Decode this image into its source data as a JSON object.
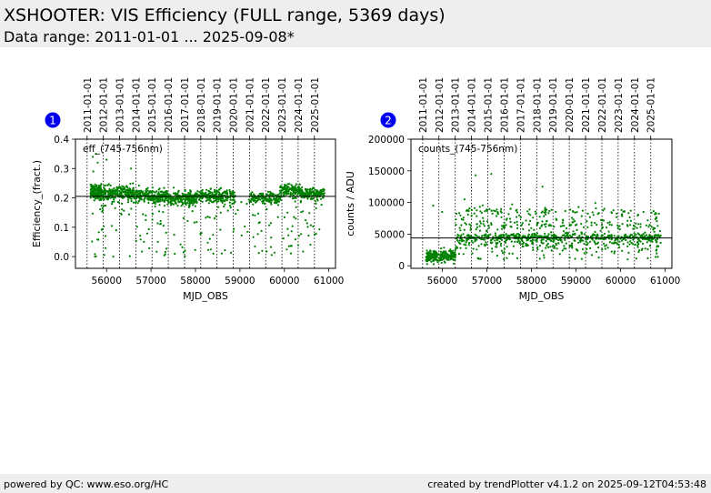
{
  "header": {
    "title": "XSHOOTER: VIS Efficiency (FULL range, 5369 days)",
    "subtitle": "Data range: 2011-01-01 ... 2025-09-08*"
  },
  "footer": {
    "left": "powered by QC: www.eso.org/HC",
    "right": "created by trendPlotter v4.1.2 on 2025-09-12T04:53:48"
  },
  "colors": {
    "points": "#008000",
    "badge": "#0000ee",
    "band": "#eeeeee"
  },
  "chart_data": [
    {
      "type": "scatter",
      "badge": "1",
      "annotation": "eff_(745-756nm)",
      "xlabel": "MJD_OBS",
      "ylabel": "Efficiency_(fract.)",
      "xlim": [
        55300,
        61150
      ],
      "ylim": [
        -0.04,
        0.4
      ],
      "xticks": [
        56000,
        57000,
        58000,
        59000,
        60000,
        61000
      ],
      "yticks": [
        0.0,
        0.1,
        0.2,
        0.3,
        0.4
      ],
      "ytick_labels": [
        "0.0",
        "0.1",
        "0.2",
        "0.3",
        "0.4"
      ],
      "reference_line": 0.205,
      "year_ticks": [
        {
          "mjd": 55562,
          "label": "2011-01-01"
        },
        {
          "mjd": 55927,
          "label": "2012-01-01"
        },
        {
          "mjd": 56293,
          "label": "2013-01-01"
        },
        {
          "mjd": 56658,
          "label": "2014-01-01"
        },
        {
          "mjd": 57023,
          "label": "2015-01-01"
        },
        {
          "mjd": 57388,
          "label": "2016-01-01"
        },
        {
          "mjd": 57754,
          "label": "2017-01-01"
        },
        {
          "mjd": 58119,
          "label": "2018-01-01"
        },
        {
          "mjd": 58484,
          "label": "2019-01-01"
        },
        {
          "mjd": 58849,
          "label": "2020-01-01"
        },
        {
          "mjd": 59215,
          "label": "2021-01-01"
        },
        {
          "mjd": 59580,
          "label": "2022-01-01"
        },
        {
          "mjd": 59945,
          "label": "2023-01-01"
        },
        {
          "mjd": 60310,
          "label": "2024-01-01"
        },
        {
          "mjd": 60676,
          "label": "2025-01-01"
        }
      ],
      "clusters": [
        {
          "x": [
            55640,
            55880
          ],
          "y": 0.22,
          "spread": 0.012,
          "n": 170
        },
        {
          "x": [
            55880,
            56650
          ],
          "y": 0.215,
          "spread": 0.012,
          "n": 260
        },
        {
          "x": [
            56650,
            57400
          ],
          "y": 0.205,
          "spread": 0.012,
          "n": 240
        },
        {
          "x": [
            57400,
            58000
          ],
          "y": 0.197,
          "spread": 0.012,
          "n": 190
        },
        {
          "x": [
            58000,
            58900
          ],
          "y": 0.205,
          "spread": 0.012,
          "n": 220
        },
        {
          "x": [
            59200,
            59900
          ],
          "y": 0.198,
          "spread": 0.01,
          "n": 150
        },
        {
          "x": [
            59900,
            60350
          ],
          "y": 0.225,
          "spread": 0.01,
          "n": 140
        },
        {
          "x": [
            60350,
            60900
          ],
          "y": 0.215,
          "spread": 0.009,
          "n": 150
        }
      ],
      "scatter_tail": {
        "x": [
          55640,
          60900
        ],
        "y_range": [
          0.0,
          0.2
        ],
        "n": 180
      },
      "outliers": [
        [
          55690,
          0.34
        ],
        [
          55760,
          0.35
        ],
        [
          55700,
          0.29
        ],
        [
          55800,
          0.32
        ],
        [
          56000,
          0.33
        ],
        [
          56550,
          0.3
        ],
        [
          55740,
          0.0
        ],
        [
          56150,
          0.0
        ],
        [
          58400,
          0.01
        ]
      ]
    },
    {
      "type": "scatter",
      "badge": "2",
      "annotation": "counts_(745-756nm)",
      "xlabel": "MJD_OBS",
      "ylabel": "counts / ADU",
      "xlim": [
        55300,
        61150
      ],
      "ylim": [
        -4000,
        200000
      ],
      "xticks": [
        56000,
        57000,
        58000,
        59000,
        60000,
        61000
      ],
      "yticks": [
        0,
        50000,
        100000,
        150000,
        200000
      ],
      "ytick_labels": [
        "0",
        "50000",
        "100000",
        "150000",
        "200000"
      ],
      "reference_line": 44000,
      "year_ticks": [
        {
          "mjd": 55562,
          "label": "2011-01-01"
        },
        {
          "mjd": 55927,
          "label": "2012-01-01"
        },
        {
          "mjd": 56293,
          "label": "2013-01-01"
        },
        {
          "mjd": 56658,
          "label": "2014-01-01"
        },
        {
          "mjd": 57023,
          "label": "2015-01-01"
        },
        {
          "mjd": 57388,
          "label": "2016-01-01"
        },
        {
          "mjd": 57754,
          "label": "2017-01-01"
        },
        {
          "mjd": 58119,
          "label": "2018-01-01"
        },
        {
          "mjd": 58484,
          "label": "2019-01-01"
        },
        {
          "mjd": 58849,
          "label": "2020-01-01"
        },
        {
          "mjd": 59215,
          "label": "2021-01-01"
        },
        {
          "mjd": 59580,
          "label": "2022-01-01"
        },
        {
          "mjd": 59945,
          "label": "2023-01-01"
        },
        {
          "mjd": 60310,
          "label": "2024-01-01"
        },
        {
          "mjd": 60676,
          "label": "2025-01-01"
        }
      ],
      "clusters": [
        {
          "x": [
            55640,
            56300
          ],
          "y": 15000,
          "spread": 5000,
          "n": 240
        },
        {
          "x": [
            56300,
            60900
          ],
          "y": 45000,
          "spread": 3000,
          "n": 450
        },
        {
          "x": [
            56300,
            60900
          ],
          "y": 85000,
          "spread": 5000,
          "n": 120
        },
        {
          "x": [
            56300,
            60900
          ],
          "y": 65000,
          "spread": 5000,
          "n": 100
        },
        {
          "x": [
            56300,
            60900
          ],
          "y": 35000,
          "spread": 6000,
          "n": 180
        }
      ],
      "scatter_tail": {
        "x": [
          56300,
          60900
        ],
        "y_range": [
          10000,
          75000
        ],
        "n": 140
      },
      "outliers": [
        [
          56750,
          143000
        ],
        [
          57100,
          145000
        ],
        [
          58250,
          125000
        ],
        [
          56500,
          105000
        ],
        [
          55800,
          95000
        ],
        [
          56000,
          85000
        ]
      ]
    }
  ]
}
